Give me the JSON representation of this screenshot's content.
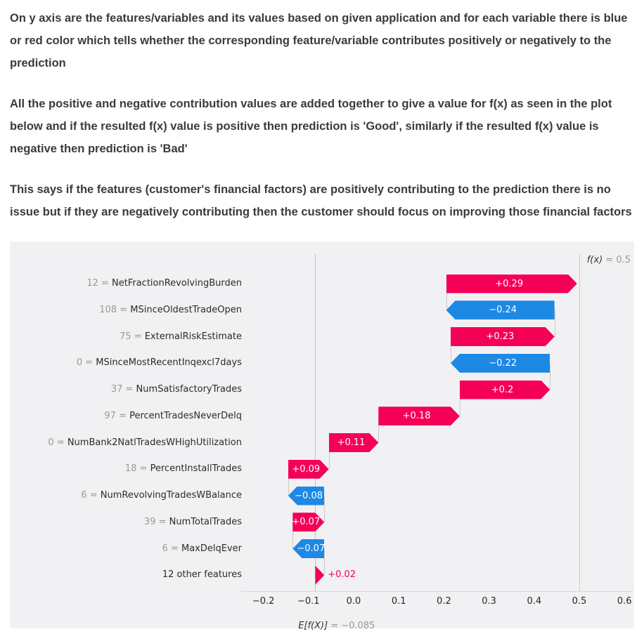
{
  "intro": {
    "paragraph1": "On y axis are the features/variables and its values based on given application and for each variable there is blue or red color which tells whether the corresponding feature/variable contributes positively or negatively to the prediction",
    "paragraph2": "All the positive and negative contribution values are added together to give a value for f(x) as seen in the plot below and if the resulted f(x) value is positive then prediction is 'Good', similarly if the resulted f(x) value is negative then prediction is 'Bad'",
    "paragraph3": "This says if the features (customer's financial factors) are positively contributing to the prediction there is no issue but if they are negatively contributing then the customer should focus on improving those financial factors"
  },
  "chart_data": {
    "type": "bar",
    "variant": "shap-waterfall",
    "fx_label": "f(x)",
    "fx_value": " = 0.5",
    "fx": 0.5,
    "base_label": "E[f(X)]",
    "base_value": " = −0.085",
    "base": -0.085,
    "xlim": [
      -0.25,
      0.62
    ],
    "xticks": [
      -0.2,
      -0.1,
      0.0,
      0.1,
      0.2,
      0.3,
      0.4,
      0.5,
      0.6
    ],
    "xtick_labels": [
      "−0.2",
      "−0.1",
      "0.0",
      "0.1",
      "0.2",
      "0.3",
      "0.4",
      "0.5",
      "0.6"
    ],
    "colors": {
      "positive": "#f50057",
      "negative": "#1e88e5"
    },
    "rows": [
      {
        "value": "12",
        "feature": "NetFractionRevolvingBurden",
        "contribution": 0.29,
        "label": "+0.29"
      },
      {
        "value": "108",
        "feature": "MSinceOldestTradeOpen",
        "contribution": -0.24,
        "label": "−0.24"
      },
      {
        "value": "75",
        "feature": "ExternalRiskEstimate",
        "contribution": 0.23,
        "label": "+0.23"
      },
      {
        "value": "0",
        "feature": "MSinceMostRecentInqexcl7days",
        "contribution": -0.22,
        "label": "−0.22"
      },
      {
        "value": "37",
        "feature": "NumSatisfactoryTrades",
        "contribution": 0.2,
        "label": "+0.2"
      },
      {
        "value": "97",
        "feature": "PercentTradesNeverDelq",
        "contribution": 0.18,
        "label": "+0.18"
      },
      {
        "value": "0",
        "feature": "NumBank2NatlTradesWHighUtilization",
        "contribution": 0.11,
        "label": "+0.11"
      },
      {
        "value": "18",
        "feature": "PercentInstallTrades",
        "contribution": 0.09,
        "label": "+0.09"
      },
      {
        "value": "6",
        "feature": "NumRevolvingTradesWBalance",
        "contribution": -0.08,
        "label": "−0.08"
      },
      {
        "value": "39",
        "feature": "NumTotalTrades",
        "contribution": 0.07,
        "label": "+0.07"
      },
      {
        "value": "6",
        "feature": "MaxDelqEver",
        "contribution": -0.07,
        "label": "−0.07"
      },
      {
        "value": null,
        "feature": "12 other features",
        "contribution": 0.02,
        "label": "+0.02",
        "label_outside": true
      }
    ]
  }
}
